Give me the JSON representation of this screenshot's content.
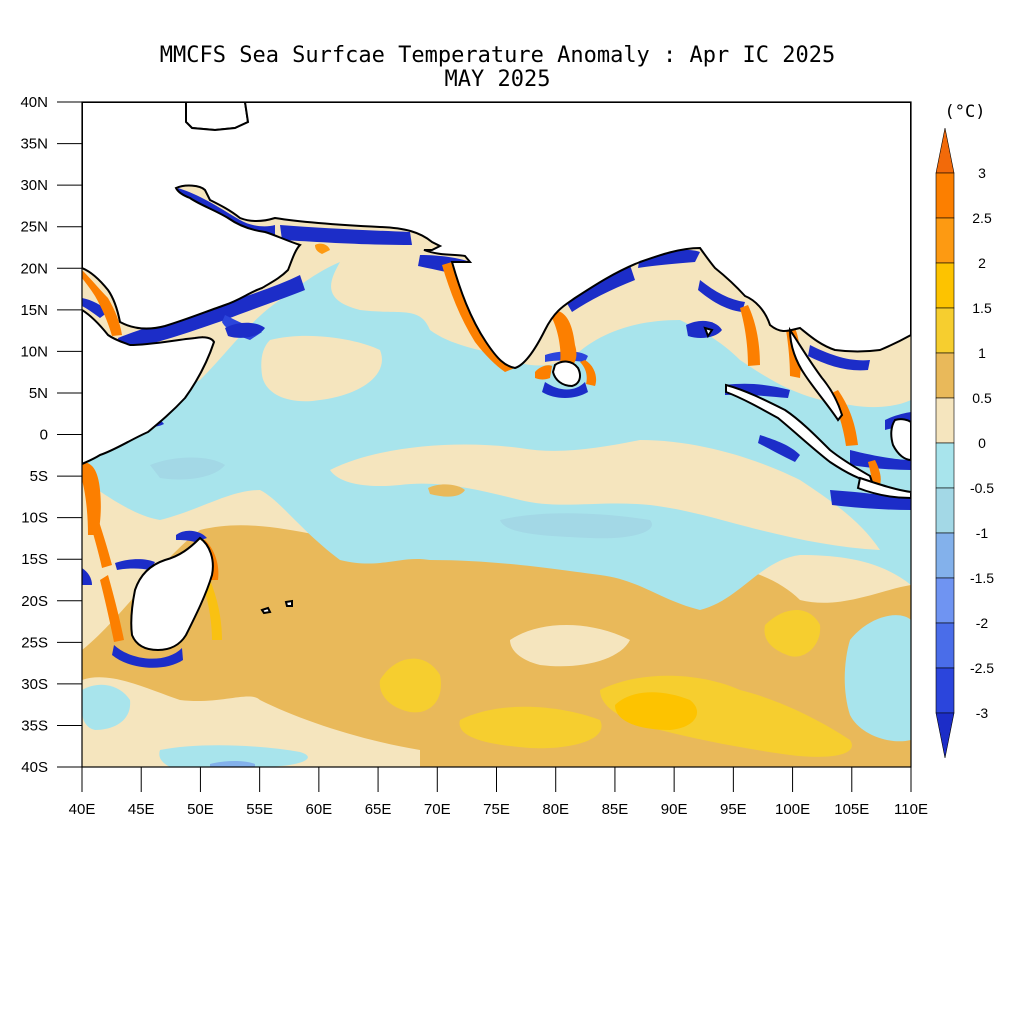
{
  "title": {
    "line1": "MMCFS Sea Surfcae Temperature Anomaly : Apr IC 2025",
    "line2": "MAY 2025"
  },
  "map": {
    "lon_range": [
      40,
      110
    ],
    "lat_range": [
      -40,
      40
    ],
    "lat_ticks": [
      {
        "v": 40,
        "t": "40N"
      },
      {
        "v": 35,
        "t": "35N"
      },
      {
        "v": 30,
        "t": "30N"
      },
      {
        "v": 25,
        "t": "25N"
      },
      {
        "v": 20,
        "t": "20N"
      },
      {
        "v": 15,
        "t": "15N"
      },
      {
        "v": 10,
        "t": "10N"
      },
      {
        "v": 5,
        "t": "5N"
      },
      {
        "v": 0,
        "t": "0"
      },
      {
        "v": -5,
        "t": "5S"
      },
      {
        "v": -10,
        "t": "10S"
      },
      {
        "v": -15,
        "t": "15S"
      },
      {
        "v": -20,
        "t": "20S"
      },
      {
        "v": -25,
        "t": "25S"
      },
      {
        "v": -30,
        "t": "30S"
      },
      {
        "v": -35,
        "t": "35S"
      },
      {
        "v": -40,
        "t": "40S"
      }
    ],
    "lon_ticks": [
      {
        "v": 40,
        "t": "40E"
      },
      {
        "v": 45,
        "t": "45E"
      },
      {
        "v": 50,
        "t": "50E"
      },
      {
        "v": 55,
        "t": "55E"
      },
      {
        "v": 60,
        "t": "60E"
      },
      {
        "v": 65,
        "t": "65E"
      },
      {
        "v": 70,
        "t": "70E"
      },
      {
        "v": 75,
        "t": "75E"
      },
      {
        "v": 80,
        "t": "80E"
      },
      {
        "v": 85,
        "t": "85E"
      },
      {
        "v": 90,
        "t": "90E"
      },
      {
        "v": 95,
        "t": "95E"
      },
      {
        "v": 100,
        "t": "100E"
      },
      {
        "v": 105,
        "t": "105E"
      },
      {
        "v": 110,
        "t": "110E"
      }
    ]
  },
  "colorbar": {
    "unit": "(°C)",
    "levels": [
      "3",
      "2.5",
      "2",
      "1.5",
      "1",
      "0.5",
      "0",
      "-0.5",
      "-1",
      "-1.5",
      "-2",
      "-2.5",
      "-3"
    ],
    "colors": [
      "#f26a0a",
      "#fc7f00",
      "#fd9a12",
      "#fdc300",
      "#f6ce2f",
      "#e9b95a",
      "#f5e5be",
      "#a8e4ec",
      "#a3d8e6",
      "#83b1eb",
      "#6f94f2",
      "#4a6de9",
      "#2b45dc",
      "#1c2dc8"
    ]
  }
}
